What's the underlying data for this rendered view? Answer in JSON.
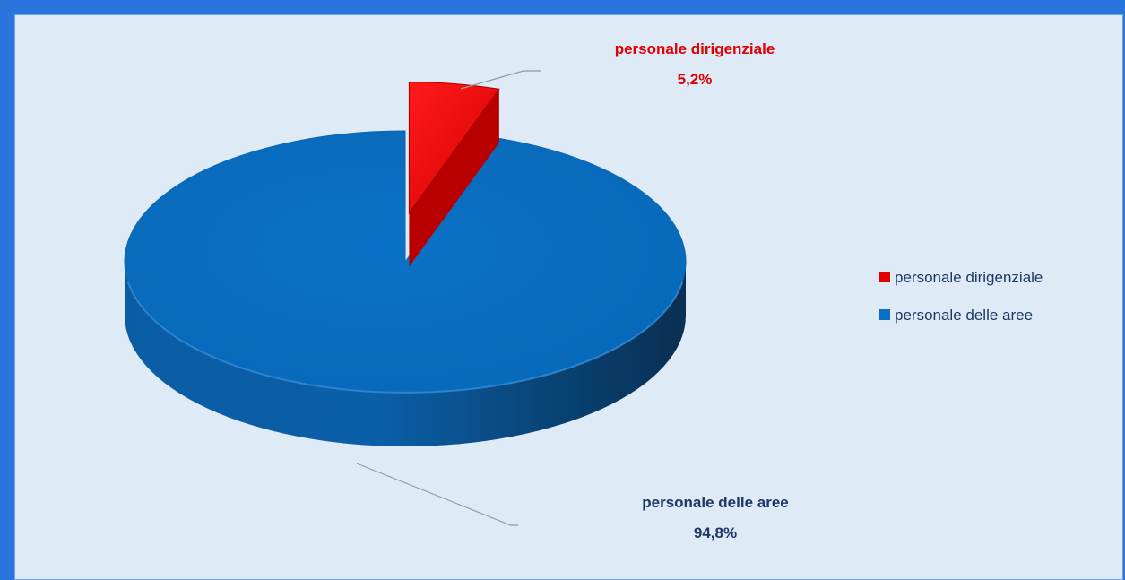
{
  "chart_data": {
    "type": "pie",
    "style": "3d-exploded",
    "title": "",
    "slices": [
      {
        "name": "personale dirigenziale",
        "value": 5.2,
        "value_label": "5,2%",
        "color": "#e00000",
        "label_color": "#e00000"
      },
      {
        "name": "personale delle aree",
        "value": 94.8,
        "value_label": "94,8%",
        "color": "#0a6fc2",
        "label_color": "#1f3864"
      }
    ],
    "legend": {
      "position": "right",
      "entries": [
        "personale dirigenziale",
        "personale delle aree"
      ]
    }
  }
}
